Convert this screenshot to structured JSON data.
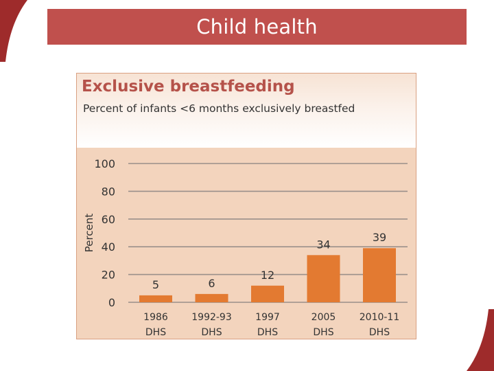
{
  "slide": {
    "title": "Child health"
  },
  "colors": {
    "banner": "#c0504d",
    "bar": "#e37a31",
    "accent": "#8b1f1f"
  },
  "chart_data": {
    "type": "bar",
    "title": "Exclusive breastfeeding",
    "subtitle": "Percent of infants <6 months exclusively breastfed",
    "ylabel": "Percent",
    "xlabel": "",
    "ylim": [
      0,
      100
    ],
    "yticks": [
      0,
      20,
      40,
      60,
      80,
      100
    ],
    "grid": true,
    "categories": [
      {
        "year": "1986",
        "source": "DHS"
      },
      {
        "year": "1992-93",
        "source": "DHS"
      },
      {
        "year": "1997",
        "source": "DHS"
      },
      {
        "year": "2005",
        "source": "DHS"
      },
      {
        "year": "2010-11",
        "source": "DHS"
      }
    ],
    "values": [
      5,
      6,
      12,
      34,
      39
    ]
  }
}
